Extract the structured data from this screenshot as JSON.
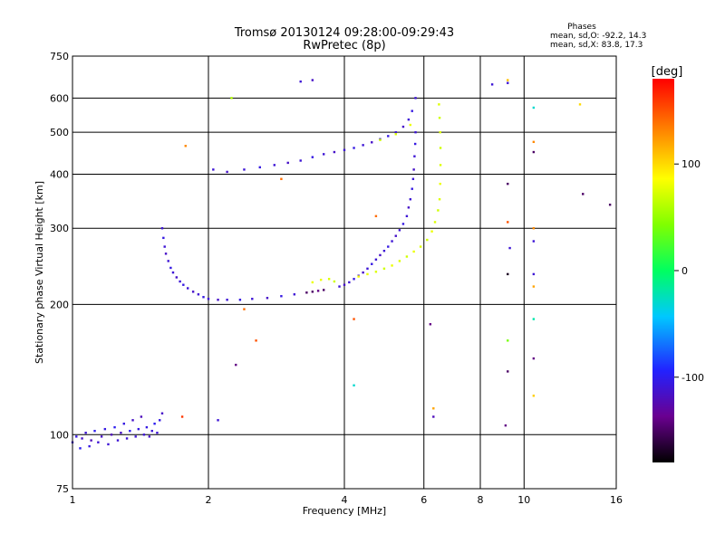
{
  "header": {
    "title": "Tromsø 20130124 09:28:00-09:29:43",
    "subtitle": "RwPretec (8p)",
    "stats_title": "Phases",
    "stats_o": "mean, sd,O: -92.2, 14.3",
    "stats_x": "mean, sd,X:  83.8, 17.3"
  },
  "chart_data": {
    "type": "scatter",
    "xlabel": "Frequency [MHz]",
    "ylabel": "Stationary phase Virtual Height [km]",
    "xscale": "log",
    "yscale": "log",
    "xlim": [
      1,
      16
    ],
    "ylim": [
      75,
      750
    ],
    "xticks": [
      1,
      2,
      4,
      6,
      8,
      10,
      16
    ],
    "xtick_labels": [
      "1",
      "2",
      "4",
      "6",
      "8",
      "10",
      "16"
    ],
    "yticks": [
      75,
      100,
      200,
      300,
      400,
      500,
      600,
      750
    ],
    "ytick_labels": [
      "75",
      "100",
      "200",
      "300",
      "400",
      "500",
      "600",
      "750"
    ],
    "grid": true,
    "colorbar": {
      "label": "[deg]",
      "ticks": [
        100,
        0,
        -100
      ],
      "tick_labels": [
        "100",
        "0",
        "-100"
      ],
      "range": [
        -180,
        180
      ]
    },
    "series": [
      {
        "points": [
          [
            1.0,
            96,
            -110
          ],
          [
            1.02,
            99,
            -105
          ],
          [
            1.04,
            93,
            -100
          ],
          [
            1.05,
            98,
            -115
          ],
          [
            1.07,
            101,
            -110
          ],
          [
            1.09,
            94,
            -105
          ],
          [
            1.1,
            97,
            -120
          ],
          [
            1.12,
            102,
            -100
          ],
          [
            1.14,
            96,
            -110
          ],
          [
            1.16,
            99,
            -115
          ],
          [
            1.18,
            103,
            -105
          ],
          [
            1.2,
            95,
            -110
          ],
          [
            1.22,
            100,
            -120
          ],
          [
            1.24,
            104,
            -100
          ],
          [
            1.26,
            97,
            -110
          ],
          [
            1.28,
            101,
            -115
          ],
          [
            1.3,
            106,
            -105
          ],
          [
            1.32,
            98,
            -110
          ],
          [
            1.34,
            102,
            -100
          ],
          [
            1.36,
            108,
            -115
          ],
          [
            1.38,
            99,
            -110
          ],
          [
            1.4,
            103,
            -105
          ],
          [
            1.42,
            110,
            -120
          ],
          [
            1.44,
            100,
            -110
          ],
          [
            1.46,
            104,
            -105
          ],
          [
            1.48,
            99,
            -115
          ],
          [
            1.5,
            102,
            -110
          ],
          [
            1.52,
            106,
            -100
          ],
          [
            1.54,
            101,
            -110
          ],
          [
            1.56,
            108,
            -105
          ],
          [
            1.58,
            112,
            -115
          ],
          [
            1.58,
            300,
            -110
          ],
          [
            1.59,
            285,
            -105
          ],
          [
            1.6,
            272,
            -110
          ],
          [
            1.61,
            262,
            -115
          ],
          [
            1.63,
            252,
            -110
          ],
          [
            1.65,
            243,
            -105
          ],
          [
            1.67,
            237,
            -110
          ],
          [
            1.7,
            231,
            -115
          ],
          [
            1.73,
            226,
            -110
          ],
          [
            1.76,
            222,
            -105
          ],
          [
            1.8,
            218,
            -110
          ],
          [
            1.85,
            214,
            -115
          ],
          [
            1.9,
            211,
            -110
          ],
          [
            1.95,
            208,
            -105
          ],
          [
            2.0,
            206,
            -110
          ],
          [
            2.1,
            205,
            -115
          ],
          [
            2.2,
            205,
            -110
          ],
          [
            2.35,
            205,
            -105
          ],
          [
            2.5,
            206,
            -110
          ],
          [
            2.7,
            207,
            -115
          ],
          [
            2.9,
            209,
            -105
          ],
          [
            3.1,
            211,
            -110
          ],
          [
            3.3,
            213,
            -150
          ],
          [
            3.4,
            214,
            -150
          ],
          [
            3.5,
            215,
            -140
          ],
          [
            3.6,
            216,
            -150
          ],
          [
            3.4,
            225,
            80
          ],
          [
            3.55,
            228,
            80
          ],
          [
            3.7,
            229,
            75
          ],
          [
            3.8,
            226,
            70
          ],
          [
            3.9,
            220,
            -110
          ],
          [
            4.0,
            222,
            -115
          ],
          [
            4.1,
            225,
            -110
          ],
          [
            4.2,
            229,
            -105
          ],
          [
            4.3,
            233,
            -110
          ],
          [
            4.4,
            237,
            -115
          ],
          [
            4.5,
            242,
            -110
          ],
          [
            4.6,
            248,
            -105
          ],
          [
            4.7,
            254,
            -110
          ],
          [
            4.8,
            260,
            -115
          ],
          [
            4.9,
            266,
            -110
          ],
          [
            5.0,
            272,
            -105
          ],
          [
            5.1,
            280,
            -110
          ],
          [
            5.2,
            288,
            -115
          ],
          [
            5.3,
            297,
            -110
          ],
          [
            5.4,
            307,
            -105
          ],
          [
            5.5,
            320,
            -110
          ],
          [
            5.55,
            335,
            -115
          ],
          [
            5.6,
            350,
            -110
          ],
          [
            5.65,
            370,
            -105
          ],
          [
            5.68,
            390,
            -110
          ],
          [
            5.7,
            410,
            -115
          ],
          [
            5.72,
            440,
            -110
          ],
          [
            5.74,
            470,
            -105
          ],
          [
            5.75,
            500,
            -110
          ],
          [
            4.3,
            232,
            85
          ],
          [
            4.5,
            235,
            80
          ],
          [
            4.7,
            238,
            75
          ],
          [
            4.9,
            242,
            70
          ],
          [
            5.1,
            246,
            80
          ],
          [
            5.3,
            252,
            75
          ],
          [
            5.5,
            258,
            70
          ],
          [
            5.7,
            265,
            80
          ],
          [
            5.9,
            272,
            75
          ],
          [
            6.1,
            282,
            70
          ],
          [
            6.25,
            295,
            80
          ],
          [
            6.35,
            310,
            75
          ],
          [
            6.45,
            330,
            70
          ],
          [
            6.5,
            350,
            75
          ],
          [
            6.52,
            380,
            80
          ],
          [
            6.53,
            420,
            75
          ],
          [
            6.53,
            460,
            70
          ],
          [
            6.52,
            500,
            75
          ],
          [
            6.5,
            540,
            70
          ],
          [
            6.48,
            580,
            75
          ],
          [
            2.05,
            410,
            -110
          ],
          [
            2.2,
            405,
            -115
          ],
          [
            2.4,
            410,
            -110
          ],
          [
            2.6,
            415,
            -105
          ],
          [
            2.8,
            420,
            -110
          ],
          [
            3.0,
            425,
            -115
          ],
          [
            3.2,
            430,
            -110
          ],
          [
            3.4,
            438,
            -105
          ],
          [
            3.6,
            445,
            -110
          ],
          [
            3.8,
            450,
            -115
          ],
          [
            4.0,
            455,
            -110
          ],
          [
            4.2,
            460,
            -105
          ],
          [
            4.4,
            467,
            -110
          ],
          [
            4.6,
            474,
            -115
          ],
          [
            4.8,
            482,
            -110
          ],
          [
            5.0,
            490,
            -105
          ],
          [
            5.2,
            500,
            -110
          ],
          [
            5.4,
            515,
            -115
          ],
          [
            5.55,
            535,
            -110
          ],
          [
            5.65,
            560,
            -105
          ],
          [
            5.75,
            600,
            -110
          ],
          [
            3.2,
            655,
            -110
          ],
          [
            3.4,
            660,
            -115
          ],
          [
            4.8,
            480,
            70
          ],
          [
            5.2,
            495,
            75
          ],
          [
            5.6,
            520,
            80
          ],
          [
            2.25,
            600,
            60
          ],
          [
            2.9,
            390,
            140
          ],
          [
            4.7,
            320,
            140
          ],
          [
            8.5,
            645,
            -110
          ],
          [
            9.2,
            650,
            -110
          ],
          [
            9.2,
            660,
            110
          ],
          [
            10.5,
            570,
            -30
          ],
          [
            13.3,
            580,
            100
          ],
          [
            10.5,
            475,
            130
          ],
          [
            10.5,
            450,
            -150
          ],
          [
            10.5,
            300,
            130
          ],
          [
            10.5,
            280,
            -110
          ],
          [
            10.5,
            235,
            -110
          ],
          [
            10.5,
            220,
            120
          ],
          [
            10.5,
            185,
            -20
          ],
          [
            10.5,
            150,
            -140
          ],
          [
            10.5,
            123,
            105
          ],
          [
            13.5,
            360,
            -150
          ],
          [
            15.5,
            340,
            -150
          ],
          [
            9.2,
            380,
            -150
          ],
          [
            9.2,
            310,
            150
          ],
          [
            9.3,
            270,
            -110
          ],
          [
            9.2,
            235,
            -170
          ],
          [
            9.2,
            165,
            40
          ],
          [
            9.2,
            140,
            -150
          ],
          [
            9.1,
            105,
            -140
          ],
          [
            6.2,
            180,
            -140
          ],
          [
            6.3,
            115,
            120
          ],
          [
            6.3,
            110,
            -120
          ],
          [
            4.2,
            130,
            -30
          ],
          [
            4.2,
            185,
            150
          ],
          [
            1.78,
            465,
            130
          ],
          [
            1.75,
            110,
            160
          ],
          [
            2.4,
            195,
            140
          ],
          [
            2.55,
            165,
            150
          ],
          [
            2.3,
            145,
            -140
          ],
          [
            2.1,
            108,
            -110
          ]
        ]
      }
    ]
  }
}
